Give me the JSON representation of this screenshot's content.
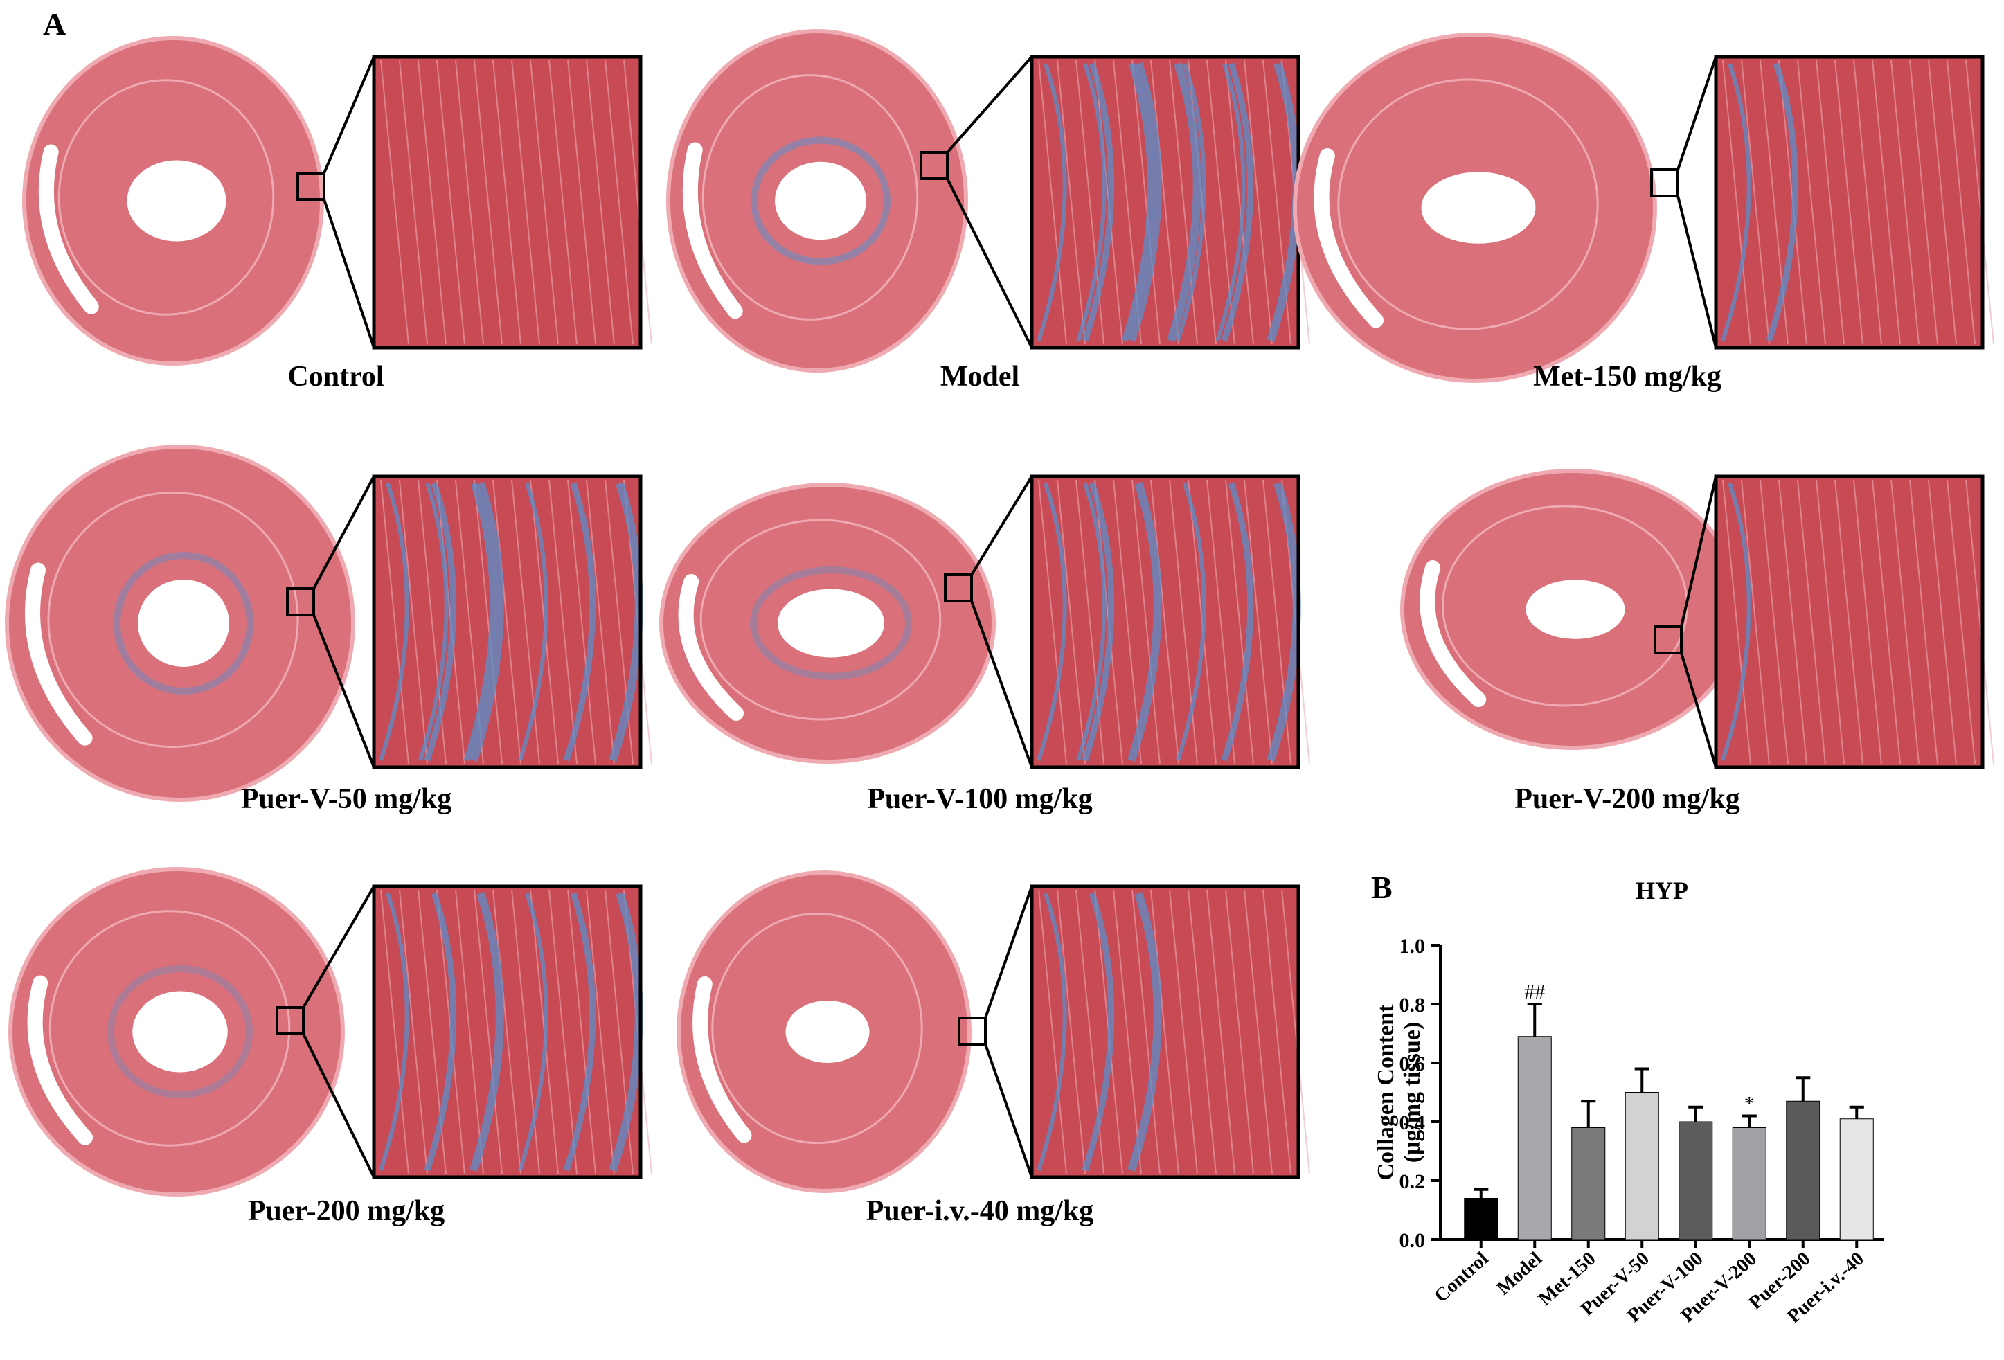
{
  "panels": {
    "a_label": "A",
    "b_label": "B"
  },
  "tissue_panels": [
    {
      "caption": "Control"
    },
    {
      "caption": "Model"
    },
    {
      "caption": "Met-150 mg/kg"
    },
    {
      "caption": "Puer-V-50 mg/kg"
    },
    {
      "caption": "Puer-V-100 mg/kg"
    },
    {
      "caption": "Puer-V-200 mg/kg"
    },
    {
      "caption": "Puer-200 mg/kg"
    },
    {
      "caption": "Puer-i.v.-40 mg/kg"
    }
  ],
  "colors": {
    "tissue": "#d9707a",
    "tissue_dark": "#c84a55",
    "tissue_light": "#eeaab0",
    "collagen": "#5b8fc9"
  },
  "chart_data": {
    "type": "bar",
    "title": "HYP",
    "ylabel_line1": "Collagen Content",
    "ylabel_line2": "(μg/mg tissue)",
    "ylim": [
      0,
      1.0
    ],
    "yticks": [
      "0.0",
      "0.2",
      "0.4",
      "0.6",
      "0.8",
      "1.0"
    ],
    "categories": [
      "Control",
      "Model",
      "Met-150",
      "Puer-V-50",
      "Puer-V-100",
      "Puer-V-200",
      "Puer-200",
      "Puer-i.v.-40"
    ],
    "values": [
      0.14,
      0.69,
      0.38,
      0.5,
      0.4,
      0.38,
      0.47,
      0.41
    ],
    "errors": [
      0.03,
      0.11,
      0.09,
      0.08,
      0.05,
      0.04,
      0.08,
      0.04
    ],
    "bar_colors": [
      "#000000",
      "#a8a8ad",
      "#7a7a7a",
      "#d2d2d2",
      "#5c5c5c",
      "#a0a0a6",
      "#5a5a5a",
      "#e6e6e6"
    ],
    "annotations": [
      "",
      "##",
      "",
      "",
      "",
      "*",
      "",
      ""
    ]
  }
}
